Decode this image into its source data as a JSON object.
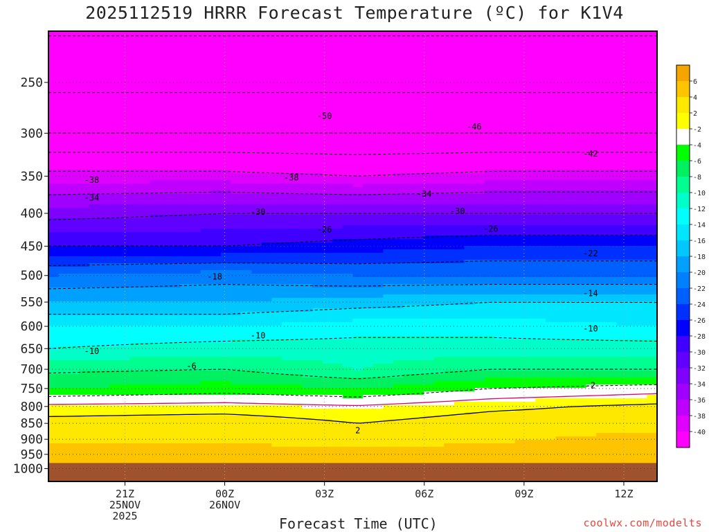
{
  "title": "2025112519 HRRR Forecast Temperature (ºC) for K1V4",
  "credit": "coolwx.com/modelts",
  "chart_data": {
    "type": "contour",
    "title": "2025112519 HRRR Forecast Temperature (ºC) for K1V4",
    "xlabel": "Forecast Time (UTC)",
    "ylabel": "",
    "x_start_hour_utc": 19,
    "x_range_hours": [
      -0.3,
      18.0
    ],
    "y_scale": "log-pressure",
    "ylim_hPa": [
      1000,
      200
    ],
    "y_ticks": [
      250,
      300,
      350,
      400,
      450,
      500,
      550,
      600,
      650,
      700,
      750,
      800,
      850,
      900,
      950,
      1000
    ],
    "x_ticks": [
      {
        "hours": 2,
        "lines": [
          "21Z",
          "25NOV",
          "2025"
        ]
      },
      {
        "hours": 5,
        "lines": [
          "00Z",
          "26NOV"
        ]
      },
      {
        "hours": 8,
        "lines": [
          "03Z"
        ]
      },
      {
        "hours": 11,
        "lines": [
          "06Z"
        ]
      },
      {
        "hours": 14,
        "lines": [
          "09Z"
        ]
      },
      {
        "hours": 17,
        "lines": [
          "12Z"
        ]
      }
    ],
    "grid": "dotted",
    "ground_level_hPa": 980,
    "ground_color": "#a0522d",
    "legend_position": "right",
    "color_scale": [
      {
        "label": "",
        "color": "#f5a500"
      },
      {
        "label": "6",
        "color": "#ffc400"
      },
      {
        "label": "4",
        "color": "#ffe800"
      },
      {
        "label": "2",
        "color": "#ffff00"
      },
      {
        "label": "-2",
        "color": "#ffffff"
      },
      {
        "label": "-4",
        "color": "#00ff00"
      },
      {
        "label": "-6",
        "color": "#00f060"
      },
      {
        "label": "-8",
        "color": "#00ff90"
      },
      {
        "label": "-10",
        "color": "#00ffc8"
      },
      {
        "label": "-12",
        "color": "#00ffff"
      },
      {
        "label": "-14",
        "color": "#00e6ff"
      },
      {
        "label": "-16",
        "color": "#00c8ff"
      },
      {
        "label": "-18",
        "color": "#00a0ff"
      },
      {
        "label": "-20",
        "color": "#0080ff"
      },
      {
        "label": "-22",
        "color": "#0060ff"
      },
      {
        "label": "-24",
        "color": "#0030ff"
      },
      {
        "label": "-26",
        "color": "#0000ff"
      },
      {
        "label": "-28",
        "color": "#4000ff"
      },
      {
        "label": "-30",
        "color": "#6000ff"
      },
      {
        "label": "-32",
        "color": "#8000ff"
      },
      {
        "label": "-34",
        "color": "#a000ff"
      },
      {
        "label": "-36",
        "color": "#c000ff"
      },
      {
        "label": "-38",
        "color": "#e000ff"
      },
      {
        "label": "-40",
        "color": "#ff00ff"
      }
    ],
    "temperature_profiles": {
      "level_hPa": [
        1000,
        950,
        900,
        850,
        800,
        750,
        700,
        650,
        600,
        550,
        500,
        450,
        400,
        350,
        300,
        250,
        200
      ],
      "profiles": [
        {
          "hours": -0.3,
          "temp_C": [
            6,
            4.5,
            3.8,
            3.0,
            0.5,
            -4,
            -6.5,
            -10,
            -12,
            -16,
            -20,
            -26,
            -31,
            -37,
            -46,
            -51,
            -55
          ]
        },
        {
          "hours": 5,
          "temp_C": [
            6,
            4.5,
            3.8,
            3.5,
            0.8,
            -3,
            -6,
            -9,
            -12,
            -16,
            -19,
            -26,
            -30,
            -37,
            -46,
            -51,
            -55
          ]
        },
        {
          "hours": 9,
          "temp_C": [
            6,
            4.5,
            3.5,
            2.0,
            0.2,
            -4,
            -8,
            -9,
            -11,
            -15,
            -20,
            -25,
            -30,
            -38,
            -46,
            -51,
            -55
          ]
        },
        {
          "hours": 13,
          "temp_C": [
            6,
            4.5,
            3.8,
            3.2,
            1.5,
            -2,
            -6,
            -9,
            -11,
            -14,
            -20,
            -24,
            -30,
            -37,
            -46,
            -51,
            -55
          ]
        },
        {
          "hours": 18,
          "temp_C": [
            6.5,
            5,
            4.5,
            3.5,
            2.5,
            -1,
            -6,
            -9,
            -12,
            -14,
            -20,
            -24,
            -30,
            -37,
            -46,
            -51,
            -55
          ]
        }
      ]
    },
    "contour_labels": [
      {
        "text": "-50",
        "hours": 8.0,
        "hPa": 282
      },
      {
        "text": "-46",
        "hours": 12.5,
        "hPa": 293
      },
      {
        "text": "-42",
        "hours": 16.0,
        "hPa": 323
      },
      {
        "text": "-38",
        "hours": 1.0,
        "hPa": 355
      },
      {
        "text": "-38",
        "hours": 7.0,
        "hPa": 352
      },
      {
        "text": "-34",
        "hours": 1.0,
        "hPa": 378
      },
      {
        "text": "-34",
        "hours": 11.0,
        "hPa": 373
      },
      {
        "text": "-30",
        "hours": 6.0,
        "hPa": 398
      },
      {
        "text": "-30",
        "hours": 12.0,
        "hPa": 397
      },
      {
        "text": "-26",
        "hours": 8.0,
        "hPa": 424
      },
      {
        "text": "-26",
        "hours": 13.0,
        "hPa": 423
      },
      {
        "text": "-22",
        "hours": 16.0,
        "hPa": 462
      },
      {
        "text": "-18",
        "hours": 4.7,
        "hPa": 502
      },
      {
        "text": "-14",
        "hours": 16.0,
        "hPa": 533
      },
      {
        "text": "-10",
        "hours": 1.0,
        "hPa": 656
      },
      {
        "text": "-10",
        "hours": 6.0,
        "hPa": 620
      },
      {
        "text": "-10",
        "hours": 16.0,
        "hPa": 605
      },
      {
        "text": "-6",
        "hours": 4.0,
        "hPa": 692
      },
      {
        "text": "-2",
        "hours": 16.0,
        "hPa": 742
      },
      {
        "text": "2",
        "hours": 9.0,
        "hPa": 872
      }
    ]
  }
}
